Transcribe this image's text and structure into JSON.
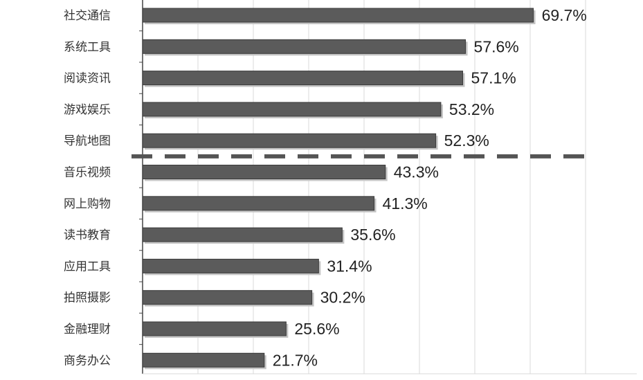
{
  "chart_data": {
    "type": "bar",
    "orientation": "horizontal",
    "categories": [
      "社交通信",
      "系统工具",
      "阅读资讯",
      "游戏娱乐",
      "导航地图",
      "音乐视频",
      "网上购物",
      "读书教育",
      "应用工具",
      "拍照摄影",
      "金融理财",
      "商务办公"
    ],
    "values": [
      69.7,
      57.6,
      57.1,
      53.2,
      52.3,
      43.3,
      41.3,
      35.6,
      31.4,
      30.2,
      25.6,
      21.7
    ],
    "value_labels": [
      "69.7%",
      "57.6%",
      "57.1%",
      "53.2%",
      "52.3%",
      "43.3%",
      "41.3%",
      "35.6%",
      "31.4%",
      "30.2%",
      "25.6%",
      "21.7%"
    ],
    "title": "",
    "xlabel": "",
    "ylabel": "",
    "grid": true,
    "legend": "none",
    "divider_after_index": 4,
    "colors": {
      "bar": "#5b5b5b",
      "bar_edge": "#3a3a3a",
      "shadow": "#c4c4c4",
      "axis": "#444444",
      "grid": "#d8d8d8",
      "divider": "#555555"
    }
  }
}
